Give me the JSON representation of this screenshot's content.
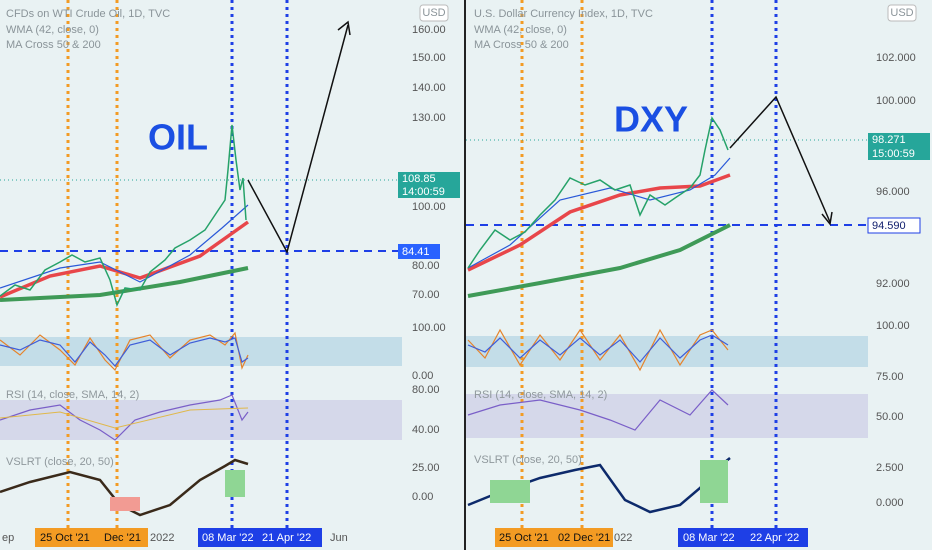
{
  "panels": [
    {
      "title": "CFDs on WTI Crude Oil, 1D, TVC",
      "indicators": [
        "WMA (42, close, 0)",
        "MA Cross 50 & 200"
      ],
      "currency": "USD",
      "label": "OIL",
      "price_axis": [
        "160.00",
        "150.00",
        "140.00",
        "130.00",
        "100.00",
        "80.00",
        "70.00"
      ],
      "last_price": "108.85",
      "countdown": "14:00:59",
      "level": "84.41",
      "oscillator_axis": [
        "100.00",
        "0.00"
      ],
      "rsi_label": "RSI (14, close, SMA, 14, 2)",
      "rsi_axis": [
        "80.00",
        "40.00"
      ],
      "vslrt_label": "VSLRT (close, 20, 50)",
      "vslrt_axis": [
        "25.00",
        "0.00"
      ],
      "date_badges": [
        "25 Oct '21",
        "Dec '21",
        "08 Mar '22",
        "21 Apr '22"
      ],
      "time_axis": [
        "ep",
        "2022",
        "Jun"
      ]
    },
    {
      "title": "U.S. Dollar Currency Index, 1D, TVC",
      "indicators": [
        "WMA (42, close, 0)",
        "MA Cross 50 & 200"
      ],
      "currency": "USD",
      "label": "DXY",
      "price_axis": [
        "102.000",
        "100.000",
        "96.000",
        "92.000"
      ],
      "last_price": "98.271",
      "countdown": "15:00:59",
      "level": "94.590",
      "oscillator_axis": [
        "100.00"
      ],
      "rsi_label": "RSI (14, close, SMA, 14, 2)",
      "rsi_axis": [
        "75.00",
        "50.00"
      ],
      "vslrt_label": "VSLRT (close, 20, 50)",
      "vslrt_axis": [
        "2.500",
        "0.000"
      ],
      "date_badges": [
        "25 Oct '21",
        "02 Dec '21",
        "08 Mar '22",
        "22 Apr '22"
      ],
      "time_axis": [
        "022"
      ]
    }
  ]
}
